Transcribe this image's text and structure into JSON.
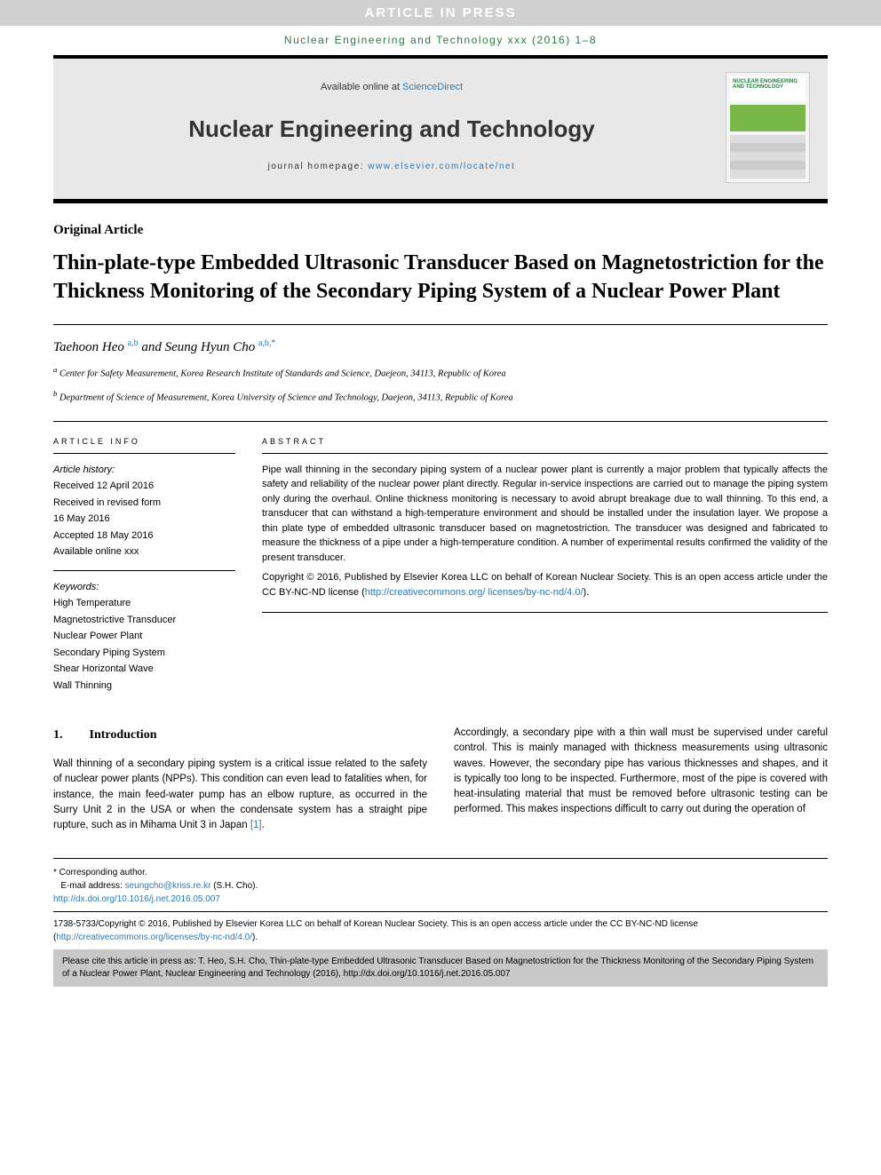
{
  "banner": "ARTICLE IN PRESS",
  "journal_ref": {
    "prefix": "Nuclear Engineering and Technology xxx (2016) 1",
    "suffix": "–8"
  },
  "header": {
    "availability_text": "Available online at ",
    "availability_link": "ScienceDirect",
    "journal_title": "Nuclear Engineering and Technology",
    "homepage_prefix": "journal homepage: ",
    "homepage_link": "www.elsevier.com/locate/net",
    "cover_label": "NUCLEAR ENGINEERING AND TECHNOLOGY"
  },
  "article_type": "Original Article",
  "title": "Thin-plate-type Embedded Ultrasonic Transducer Based on Magnetostriction for the Thickness Monitoring of the Secondary Piping System of a Nuclear Power Plant",
  "authors": {
    "a1_name": "Taehoon Heo",
    "a1_sup": "a,b",
    "and": " and ",
    "a2_name": "Seung Hyun Cho",
    "a2_sup": "a,b,*"
  },
  "affiliations": {
    "a": "Center for Safety Measurement, Korea Research Institute of Standards and Science, Daejeon, 34113, Republic of Korea",
    "b": "Department of Science of Measurement, Korea University of Science and Technology, Daejeon, 34113, Republic of Korea"
  },
  "info": {
    "heading": "ARTICLE INFO",
    "history_label": "Article history:",
    "received": "Received 12 April 2016",
    "revised1": "Received in revised form",
    "revised2": "16 May 2016",
    "accepted": "Accepted 18 May 2016",
    "available": "Available online xxx",
    "keywords_label": "Keywords:",
    "keywords": [
      "High Temperature",
      "Magnetostrictive Transducer",
      "Nuclear Power Plant",
      "Secondary Piping System",
      "Shear Horizontal Wave",
      "Wall Thinning"
    ]
  },
  "abstract": {
    "heading": "ABSTRACT",
    "text": "Pipe wall thinning in the secondary piping system of a nuclear power plant is currently a major problem that typically affects the safety and reliability of the nuclear power plant directly. Regular in-service inspections are carried out to manage the piping system only during the overhaul. Online thickness monitoring is necessary to avoid abrupt breakage due to wall thinning. To this end, a transducer that can withstand a high-temperature environment and should be installed under the insulation layer. We propose a thin plate type of embedded ultrasonic transducer based on magnetostriction. The transducer was designed and fabricated to measure the thickness of a pipe under a high-temperature condition. A number of experimental results confirmed the validity of the present transducer.",
    "copyright_prefix": "Copyright © 2016, Published by Elsevier Korea LLC on behalf of Korean Nuclear Society. This is an open access article under the CC BY-NC-ND license (",
    "license_link1": "http://creativecommons.org/",
    "license_link2": "licenses/by-nc-nd/4.0/",
    "copyright_suffix": ")."
  },
  "body": {
    "section_num": "1.",
    "section_title": "Introduction",
    "left": "Wall thinning of a secondary piping system is a critical issue related to the safety of nuclear power plants (NPPs). This condition can even lead to fatalities when, for instance, the main feed-water pump has an elbow rupture, as occurred in the Surry Unit 2 in the USA or when the condensate system has a straight pipe rupture, such as in Mihama Unit 3 in Japan ",
    "left_ref": "[1]",
    "left_suffix": ".",
    "right": "Accordingly, a secondary pipe with a thin wall must be supervised under careful control. This is mainly managed with thickness measurements using ultrasonic waves. However, the secondary pipe has various thicknesses and shapes, and it is typically too long to be inspected. Furthermore, most of the pipe is covered with heat-insulating material that must be removed before ultrasonic testing can be performed. This makes inspections difficult to carry out during the operation of"
  },
  "footer": {
    "corresponding": "* Corresponding author.",
    "email_label": "E-mail address: ",
    "email": "seungcho@kriss.re.kr",
    "email_name": " (S.H. Cho).",
    "doi": "http://dx.doi.org/10.1016/j.net.2016.05.007",
    "copyright_text": "1738-5733/Copyright © 2016, Published by Elsevier Korea LLC on behalf of Korean Nuclear Society. This is an open access article under the CC BY-NC-ND license (",
    "license_link": "http://creativecommons.org/licenses/by-nc-nd/4.0/",
    "copyright_suffix": ")."
  },
  "cite_box": "Please cite this article in press as: T. Heo, S.H. Cho, Thin-plate-type Embedded Ultrasonic Transducer Based on Magnetostriction for the Thickness Monitoring of the Secondary Piping System of a Nuclear Power Plant, Nuclear Engineering and Technology (2016), http://dx.doi.org/10.1016/j.net.2016.05.007",
  "colors": {
    "banner_bg": "#d0d0d0",
    "green": "#2a7a3f",
    "link": "#2a7ab8",
    "header_bg": "#e8e8e8",
    "cite_bg": "#c8c8c8",
    "cover_green": "#7ab84a"
  }
}
